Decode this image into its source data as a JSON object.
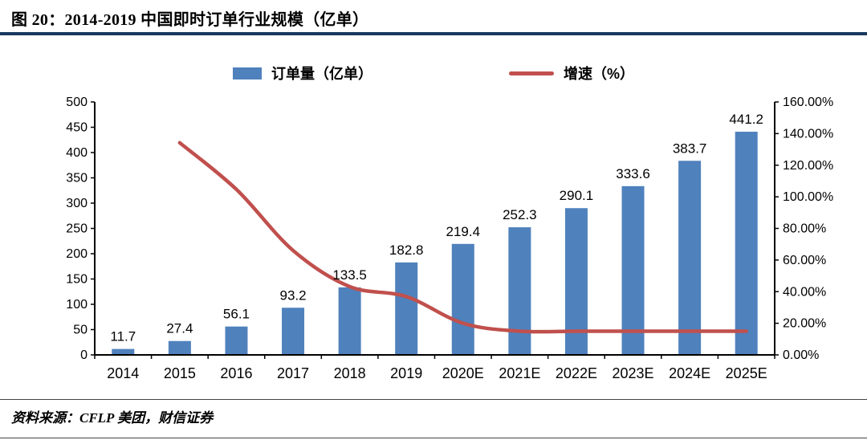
{
  "header": {
    "title": "图 20：2014-2019 中国即时订单行业规模（亿单）"
  },
  "legend": {
    "bars": "订单量（亿单）",
    "line": "增速（%）"
  },
  "footer": {
    "source": "资料来源：CFLP 美团，财信证券"
  },
  "colors": {
    "bar": "#4F81BD",
    "line": "#C0504D",
    "title_rule": "#17375E",
    "axis": "#000000"
  },
  "chart_data": {
    "type": "bar",
    "subtype": "bar+line combo, dual axis",
    "title": "图 20：2014-2019 中国即时订单行业规模（亿单）",
    "categories": [
      "2014",
      "2015",
      "2016",
      "2017",
      "2018",
      "2019",
      "2020E",
      "2021E",
      "2022E",
      "2023E",
      "2024E",
      "2025E"
    ],
    "series": [
      {
        "name": "订单量（亿单）",
        "type": "bar",
        "axis": "left",
        "values": [
          11.7,
          27.4,
          56.1,
          93.2,
          133.5,
          182.8,
          219.4,
          252.3,
          290.1,
          333.6,
          383.7,
          441.2
        ],
        "data_labels_shown": true
      },
      {
        "name": "增速（%）",
        "type": "line",
        "axis": "right",
        "values": [
          null,
          134.2,
          104.7,
          66.1,
          43.2,
          36.9,
          20.0,
          15.0,
          15.0,
          15.0,
          15.0,
          15.0
        ]
      }
    ],
    "left_axis": {
      "min": 0,
      "max": 500,
      "ticks": [
        0,
        50,
        100,
        150,
        200,
        250,
        300,
        350,
        400,
        450,
        500
      ]
    },
    "right_axis": {
      "min": 0,
      "max": 160,
      "ticks": [
        0,
        20,
        40,
        60,
        80,
        100,
        120,
        140,
        160
      ],
      "decimals": 2,
      "suffix": "%"
    },
    "grid": false,
    "legend_position": "top"
  }
}
